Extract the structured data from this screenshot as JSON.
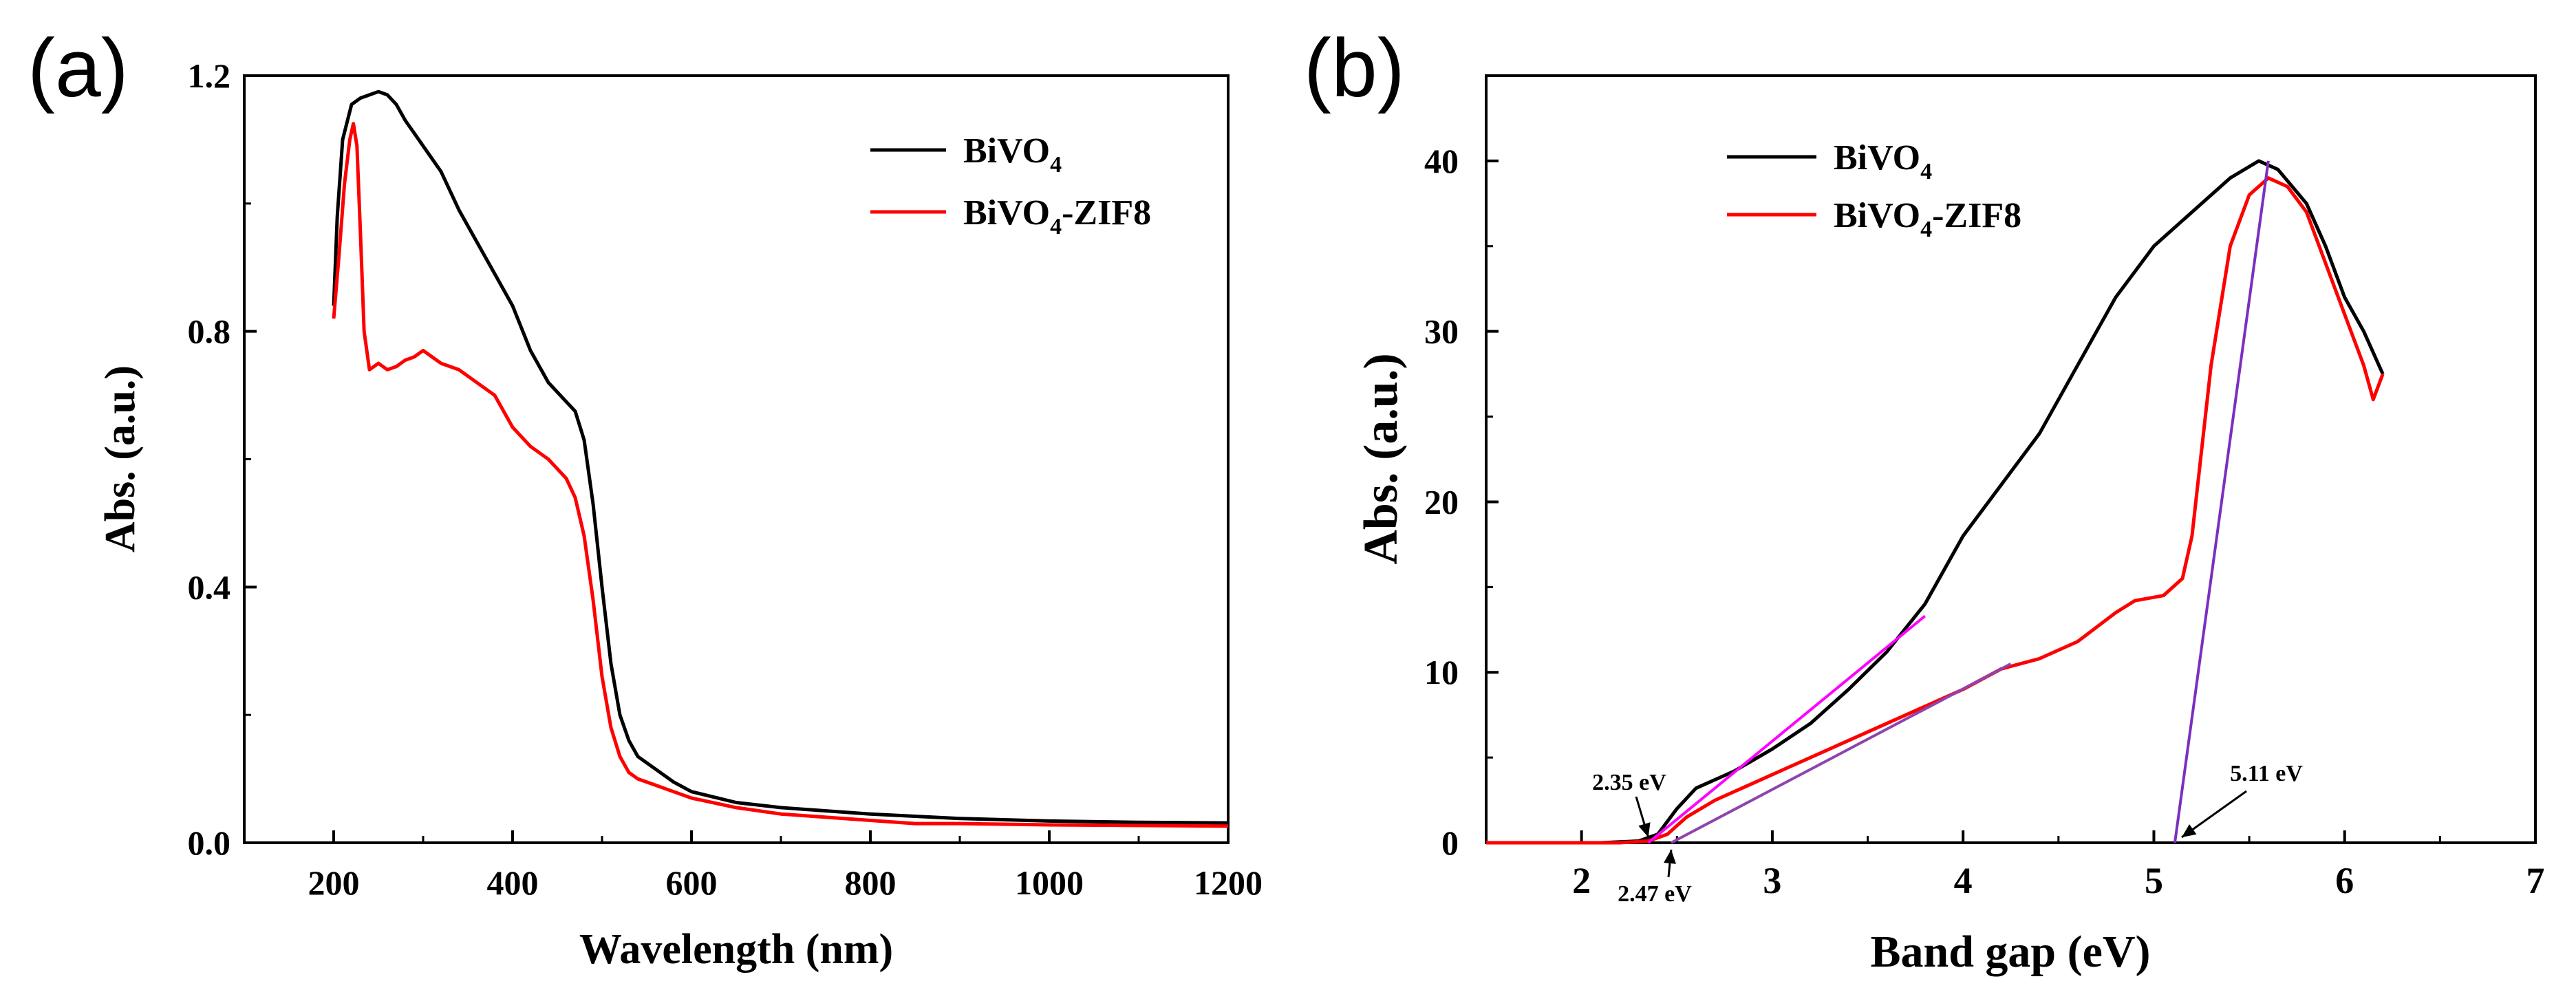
{
  "chart_data": [
    {
      "panel_label": "(a)",
      "type": "line",
      "title": "",
      "xlabel": "Wavelength (nm)",
      "ylabel": "Abs. (a.u.)",
      "xlim": [
        100,
        1200
      ],
      "ylim": [
        0,
        1.2
      ],
      "xticks": [
        "200",
        "400",
        "600",
        "800",
        "1000",
        "1200"
      ],
      "xtick_values": [
        200,
        400,
        600,
        800,
        1000,
        1200
      ],
      "yticks": [
        "0.0",
        "0.4",
        "0.8",
        "1.2"
      ],
      "ytick_values": [
        0,
        0.4,
        0.8,
        1.2
      ],
      "legend_position": "top-right",
      "series": [
        {
          "name": "BiVO4",
          "name_main": "BiVO",
          "name_sub": "4",
          "name_tail": "",
          "color": "#000000",
          "points": [
            [
              200,
              0.84
            ],
            [
              204,
              0.98
            ],
            [
              210,
              1.1
            ],
            [
              220,
              1.155
            ],
            [
              230,
              1.165
            ],
            [
              240,
              1.17
            ],
            [
              250,
              1.175
            ],
            [
              260,
              1.17
            ],
            [
              270,
              1.155
            ],
            [
              280,
              1.13
            ],
            [
              290,
              1.11
            ],
            [
              300,
              1.09
            ],
            [
              320,
              1.05
            ],
            [
              340,
              0.99
            ],
            [
              360,
              0.94
            ],
            [
              380,
              0.89
            ],
            [
              400,
              0.84
            ],
            [
              420,
              0.77
            ],
            [
              440,
              0.72
            ],
            [
              460,
              0.69
            ],
            [
              470,
              0.675
            ],
            [
              480,
              0.63
            ],
            [
              490,
              0.53
            ],
            [
              500,
              0.4
            ],
            [
              510,
              0.28
            ],
            [
              520,
              0.2
            ],
            [
              530,
              0.16
            ],
            [
              540,
              0.135
            ],
            [
              560,
              0.115
            ],
            [
              580,
              0.095
            ],
            [
              600,
              0.08
            ],
            [
              650,
              0.063
            ],
            [
              700,
              0.055
            ],
            [
              800,
              0.045
            ],
            [
              900,
              0.038
            ],
            [
              1000,
              0.034
            ],
            [
              1100,
              0.032
            ],
            [
              1200,
              0.031
            ]
          ]
        },
        {
          "name": "BiVO4-ZIF8",
          "name_main": "BiVO",
          "name_sub": "4",
          "name_tail": "-ZIF8",
          "color": "#ff0000",
          "points": [
            [
              200,
              0.82
            ],
            [
              206,
              0.92
            ],
            [
              212,
              1.03
            ],
            [
              218,
              1.1
            ],
            [
              222,
              1.125
            ],
            [
              226,
              1.09
            ],
            [
              230,
              0.95
            ],
            [
              234,
              0.8
            ],
            [
              240,
              0.74
            ],
            [
              250,
              0.75
            ],
            [
              260,
              0.74
            ],
            [
              270,
              0.745
            ],
            [
              280,
              0.755
            ],
            [
              290,
              0.76
            ],
            [
              300,
              0.77
            ],
            [
              310,
              0.76
            ],
            [
              320,
              0.75
            ],
            [
              340,
              0.74
            ],
            [
              360,
              0.72
            ],
            [
              380,
              0.7
            ],
            [
              400,
              0.65
            ],
            [
              420,
              0.62
            ],
            [
              440,
              0.6
            ],
            [
              460,
              0.57
            ],
            [
              470,
              0.54
            ],
            [
              480,
              0.48
            ],
            [
              490,
              0.38
            ],
            [
              500,
              0.26
            ],
            [
              510,
              0.18
            ],
            [
              520,
              0.135
            ],
            [
              530,
              0.11
            ],
            [
              540,
              0.1
            ],
            [
              560,
              0.09
            ],
            [
              580,
              0.08
            ],
            [
              600,
              0.07
            ],
            [
              650,
              0.055
            ],
            [
              700,
              0.045
            ],
            [
              800,
              0.035
            ],
            [
              850,
              0.03
            ],
            [
              900,
              0.03
            ],
            [
              1000,
              0.028
            ],
            [
              1100,
              0.027
            ],
            [
              1200,
              0.026
            ]
          ]
        }
      ]
    },
    {
      "panel_label": "(b)",
      "type": "line",
      "title": "",
      "xlabel": "Band gap (eV)",
      "ylabel": "Abs. (a.u.)",
      "xlim": [
        1.5,
        7
      ],
      "ylim": [
        0,
        45
      ],
      "xticks": [
        "2",
        "3",
        "4",
        "5",
        "6",
        "7"
      ],
      "xtick_values": [
        2,
        3,
        4,
        5,
        6,
        7
      ],
      "yticks": [
        "0",
        "10",
        "20",
        "30",
        "40"
      ],
      "ytick_values": [
        0,
        10,
        20,
        30,
        40
      ],
      "legend_position": "top-left",
      "series": [
        {
          "name": "BiVO4",
          "name_main": "BiVO",
          "name_sub": "4",
          "name_tail": "",
          "color": "#000000",
          "points": [
            [
              1.5,
              0
            ],
            [
              2.1,
              0
            ],
            [
              2.3,
              0.1
            ],
            [
              2.4,
              0.5
            ],
            [
              2.5,
              2.0
            ],
            [
              2.6,
              3.2
            ],
            [
              2.8,
              4.2
            ],
            [
              3.0,
              5.5
            ],
            [
              3.2,
              7.0
            ],
            [
              3.4,
              9.0
            ],
            [
              3.6,
              11.2
            ],
            [
              3.8,
              14.0
            ],
            [
              4.0,
              18.0
            ],
            [
              4.2,
              21.0
            ],
            [
              4.4,
              24.0
            ],
            [
              4.6,
              28.0
            ],
            [
              4.8,
              32.0
            ],
            [
              5.0,
              35.0
            ],
            [
              5.2,
              37.0
            ],
            [
              5.4,
              39.0
            ],
            [
              5.55,
              40.0
            ],
            [
              5.65,
              39.5
            ],
            [
              5.8,
              37.5
            ],
            [
              5.9,
              35.0
            ],
            [
              6.0,
              32.0
            ],
            [
              6.1,
              30.0
            ],
            [
              6.2,
              27.5
            ]
          ]
        },
        {
          "name": "BiVO4-ZIF8",
          "name_main": "BiVO",
          "name_sub": "4",
          "name_tail": "-ZIF8",
          "color": "#ff0000",
          "points": [
            [
              1.5,
              0
            ],
            [
              2.2,
              0
            ],
            [
              2.35,
              0.1
            ],
            [
              2.45,
              0.5
            ],
            [
              2.55,
              1.5
            ],
            [
              2.7,
              2.5
            ],
            [
              2.9,
              3.5
            ],
            [
              3.1,
              4.5
            ],
            [
              3.4,
              6.0
            ],
            [
              3.7,
              7.5
            ],
            [
              4.0,
              9.0
            ],
            [
              4.2,
              10.2
            ],
            [
              4.4,
              10.8
            ],
            [
              4.6,
              11.8
            ],
            [
              4.8,
              13.5
            ],
            [
              4.9,
              14.2
            ],
            [
              5.05,
              14.5
            ],
            [
              5.15,
              15.5
            ],
            [
              5.2,
              18.0
            ],
            [
              5.3,
              28.0
            ],
            [
              5.4,
              35.0
            ],
            [
              5.5,
              38.0
            ],
            [
              5.6,
              39.0
            ],
            [
              5.7,
              38.5
            ],
            [
              5.8,
              37.0
            ],
            [
              5.9,
              34.0
            ],
            [
              6.0,
              31.0
            ],
            [
              6.1,
              28.0
            ],
            [
              6.15,
              26.0
            ],
            [
              6.2,
              27.5
            ]
          ]
        }
      ],
      "fit_lines": [
        {
          "name": "tangent-bivo4",
          "color": "#ff00ff",
          "points": [
            [
              2.35,
              0
            ],
            [
              3.8,
              13.3
            ]
          ]
        },
        {
          "name": "tangent-bivo4-zif8-low",
          "color": "#8e44ad",
          "points": [
            [
              2.47,
              0
            ],
            [
              4.25,
              10.5
            ]
          ]
        },
        {
          "name": "tangent-bivo4-zif8-high",
          "color": "#7b2fbf",
          "points": [
            [
              5.11,
              0
            ],
            [
              5.6,
              40
            ]
          ]
        }
      ],
      "annotations": [
        {
          "text": "2.35 eV",
          "value": 2.35
        },
        {
          "text": "2.47 eV",
          "value": 2.47
        },
        {
          "text": "5.11 eV",
          "value": 5.11
        }
      ]
    }
  ]
}
